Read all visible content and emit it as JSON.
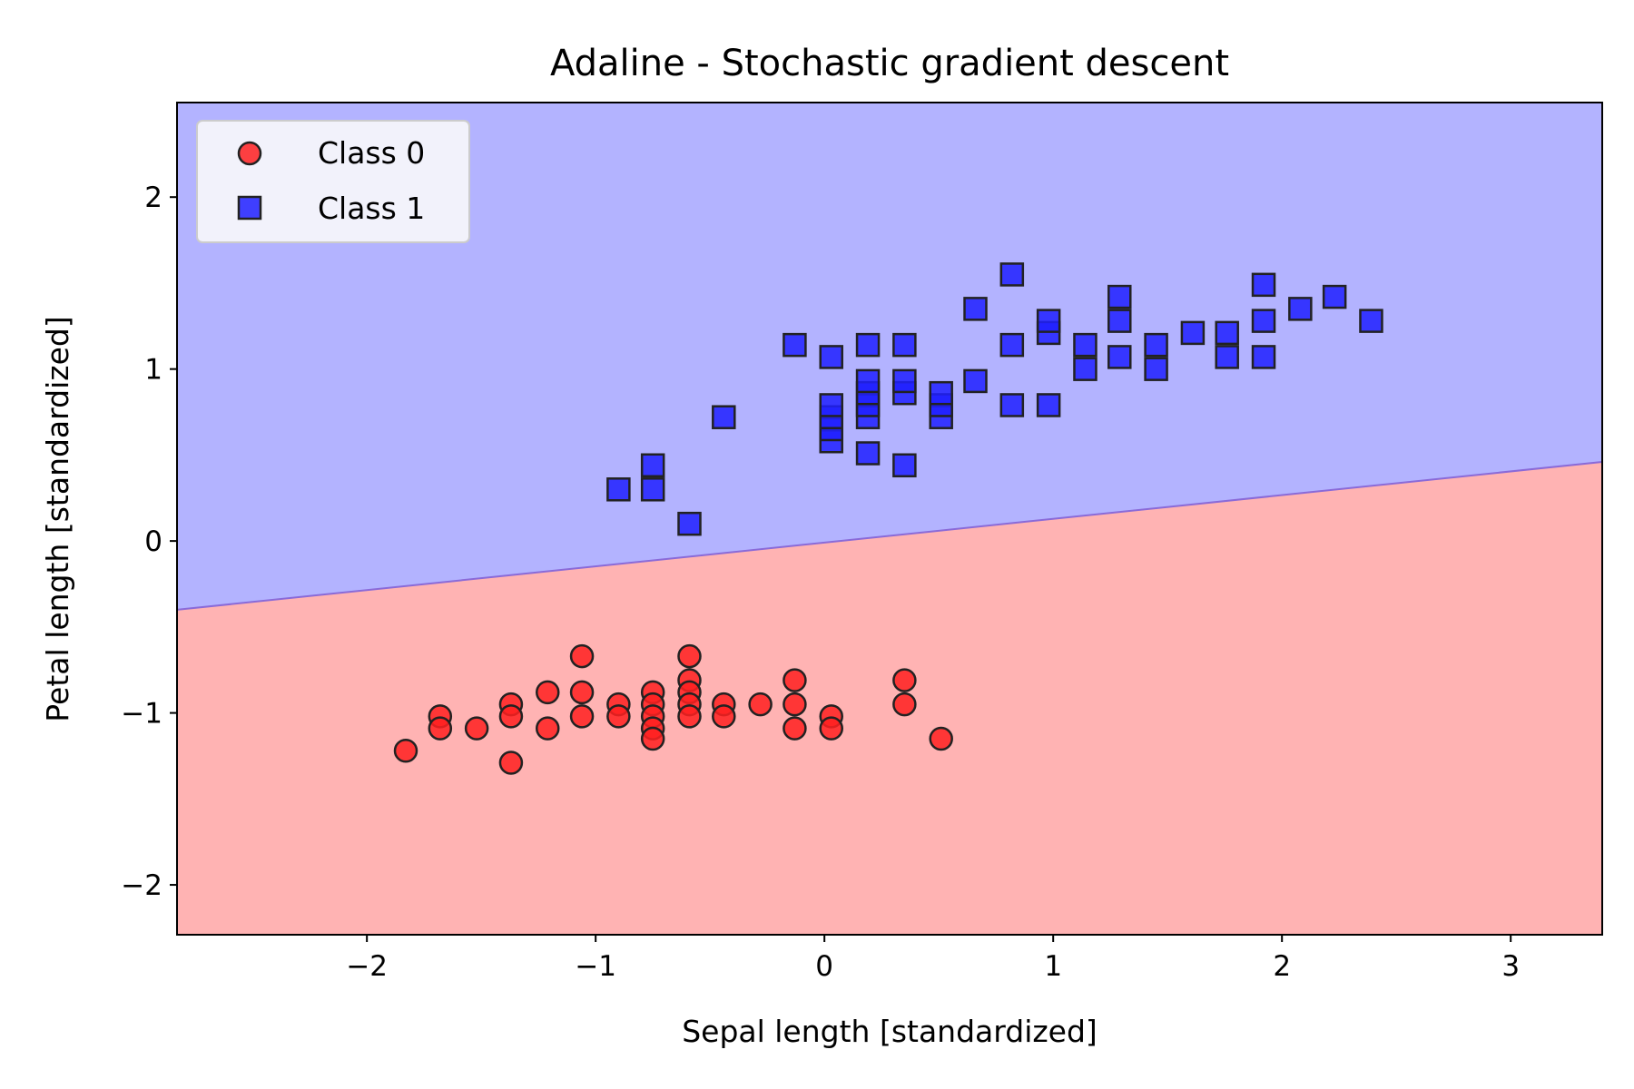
{
  "chart_data": {
    "type": "scatter",
    "title": "Adaline - Stochastic gradient descent",
    "xlabel": "Sepal length [standardized]",
    "ylabel": "Petal length [standardized]",
    "xlim": [
      -2.83,
      3.4
    ],
    "ylim": [
      -2.29,
      2.55
    ],
    "xticks": [
      -2,
      -1,
      0,
      1,
      2,
      3
    ],
    "yticks": [
      -2,
      -1,
      0,
      1,
      2
    ],
    "tick_labels_x": [
      "−2",
      "−1",
      "0",
      "1",
      "2",
      "3"
    ],
    "tick_labels_y": [
      "−2",
      "−1",
      "0",
      "1",
      "2"
    ],
    "grid": false,
    "legend_position": "upper-left",
    "decision_boundary": {
      "description": "Linear decision boundary separating the regions",
      "points": [
        [
          -2.83,
          -0.4
        ],
        [
          3.4,
          0.46
        ]
      ],
      "region_above": "Class 1",
      "region_below": "Class 0"
    },
    "colors": {
      "class0_marker": "#ff2020",
      "class1_marker": "#2020ff",
      "class0_region": "#ffb3b3",
      "class1_region": "#b3b3ff",
      "marker_edge": "#222222"
    },
    "series": [
      {
        "name": "Class 0",
        "marker": "circle",
        "points": [
          [
            -1.83,
            -1.22
          ],
          [
            -1.68,
            -1.02
          ],
          [
            -1.68,
            -1.09
          ],
          [
            -1.52,
            -1.09
          ],
          [
            -1.37,
            -0.95
          ],
          [
            -1.37,
            -1.02
          ],
          [
            -1.37,
            -1.29
          ],
          [
            -1.21,
            -0.88
          ],
          [
            -1.21,
            -1.09
          ],
          [
            -1.06,
            -0.67
          ],
          [
            -1.06,
            -0.88
          ],
          [
            -1.06,
            -1.02
          ],
          [
            -0.9,
            -0.95
          ],
          [
            -0.9,
            -1.02
          ],
          [
            -0.75,
            -0.88
          ],
          [
            -0.75,
            -0.95
          ],
          [
            -0.75,
            -1.02
          ],
          [
            -0.75,
            -1.09
          ],
          [
            -0.75,
            -1.15
          ],
          [
            -0.59,
            -0.67
          ],
          [
            -0.59,
            -0.81
          ],
          [
            -0.59,
            -0.88
          ],
          [
            -0.59,
            -0.95
          ],
          [
            -0.59,
            -1.02
          ],
          [
            -0.44,
            -0.95
          ],
          [
            -0.44,
            -1.02
          ],
          [
            -0.28,
            -0.95
          ],
          [
            -0.13,
            -0.81
          ],
          [
            -0.13,
            -0.95
          ],
          [
            -0.13,
            -1.09
          ],
          [
            0.03,
            -1.02
          ],
          [
            0.03,
            -1.09
          ],
          [
            0.35,
            -0.81
          ],
          [
            0.35,
            -0.95
          ],
          [
            0.51,
            -1.15
          ]
        ]
      },
      {
        "name": "Class 1",
        "marker": "square",
        "points": [
          [
            -0.9,
            0.3
          ],
          [
            -0.75,
            0.3
          ],
          [
            -0.75,
            0.44
          ],
          [
            -0.59,
            0.1
          ],
          [
            -0.44,
            0.72
          ],
          [
            -0.13,
            1.14
          ],
          [
            0.03,
            0.58
          ],
          [
            0.03,
            0.65
          ],
          [
            0.03,
            0.72
          ],
          [
            0.03,
            0.79
          ],
          [
            0.03,
            1.07
          ],
          [
            0.19,
            0.51
          ],
          [
            0.19,
            0.72
          ],
          [
            0.19,
            0.79
          ],
          [
            0.19,
            0.86
          ],
          [
            0.19,
            0.93
          ],
          [
            0.19,
            1.14
          ],
          [
            0.35,
            0.44
          ],
          [
            0.35,
            0.86
          ],
          [
            0.35,
            0.93
          ],
          [
            0.35,
            1.14
          ],
          [
            0.51,
            0.72
          ],
          [
            0.51,
            0.79
          ],
          [
            0.51,
            0.86
          ],
          [
            0.66,
            0.93
          ],
          [
            0.66,
            1.35
          ],
          [
            0.82,
            0.79
          ],
          [
            0.82,
            1.14
          ],
          [
            0.82,
            1.55
          ],
          [
            0.98,
            0.79
          ],
          [
            0.98,
            1.21
          ],
          [
            0.98,
            1.28
          ],
          [
            1.14,
            1.0
          ],
          [
            1.14,
            1.14
          ],
          [
            1.29,
            1.07
          ],
          [
            1.29,
            1.28
          ],
          [
            1.29,
            1.42
          ],
          [
            1.45,
            1.0
          ],
          [
            1.45,
            1.14
          ],
          [
            1.61,
            1.21
          ],
          [
            1.76,
            1.07
          ],
          [
            1.76,
            1.21
          ],
          [
            1.92,
            1.07
          ],
          [
            1.92,
            1.28
          ],
          [
            1.92,
            1.49
          ],
          [
            2.08,
            1.35
          ],
          [
            2.23,
            1.42
          ],
          [
            2.39,
            1.28
          ]
        ]
      }
    ]
  }
}
